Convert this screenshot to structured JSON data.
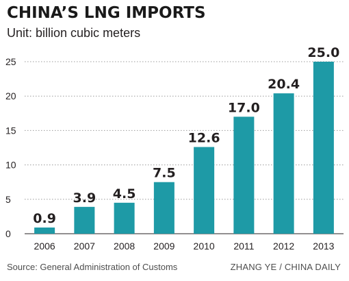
{
  "chart_data": {
    "type": "bar",
    "title": "CHINA’S LNG IMPORTS",
    "subtitle": "Unit: billion cubic meters",
    "categories": [
      "2006",
      "2007",
      "2008",
      "2009",
      "2010",
      "2011",
      "2012",
      "2013"
    ],
    "values": [
      0.9,
      3.9,
      4.5,
      7.5,
      12.6,
      17.0,
      20.4,
      25.0
    ],
    "value_labels": [
      "0.9",
      "3.9",
      "4.5",
      "7.5",
      "12.6",
      "17.0",
      "20.4",
      "25.0"
    ],
    "yticks": [
      "0",
      "5",
      "10",
      "15",
      "20",
      "25"
    ],
    "ylim": [
      0,
      25
    ],
    "grid": "horizontal dotted",
    "legend": "none",
    "bar_color": "#1e9aa6"
  },
  "footer": {
    "source": "Source: General Administration of Customs",
    "credit": "ZHANG YE / CHINA DAILY"
  }
}
